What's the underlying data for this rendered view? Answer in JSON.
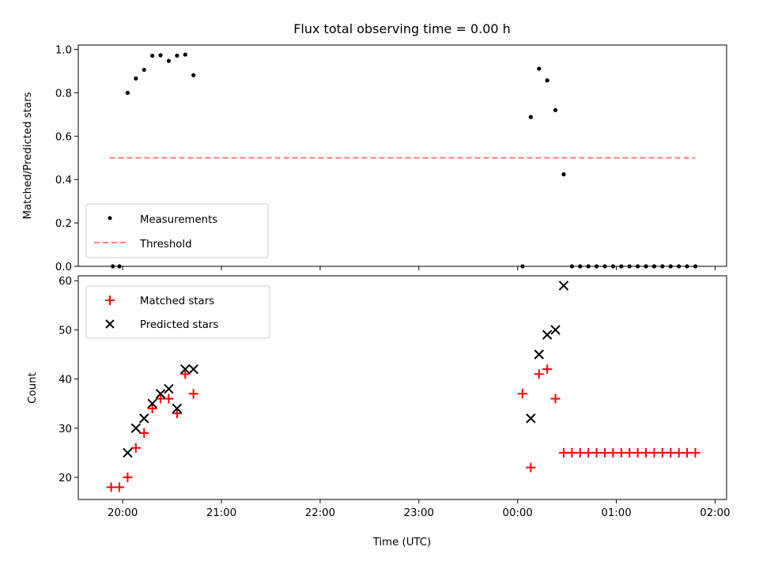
{
  "title": "Flux total observing time = 0.00 h",
  "colors": {
    "measurement": "#000000",
    "threshold": "#ff7f7f",
    "matched": "#ff0000",
    "predicted": "#000000"
  },
  "x_axis": {
    "xlabel": "Time (UTC)",
    "xlim": [
      "2024-01-01T19:33",
      "2024-01-02T02:07"
    ],
    "ticks": [
      {
        "t": "2024-01-01T20:00",
        "label": "20:00"
      },
      {
        "t": "2024-01-01T21:00",
        "label": "21:00"
      },
      {
        "t": "2024-01-01T22:00",
        "label": "22:00"
      },
      {
        "t": "2024-01-01T23:00",
        "label": "23:00"
      },
      {
        "t": "2024-01-02T00:00",
        "label": "00:00"
      },
      {
        "t": "2024-01-02T01:00",
        "label": "01:00"
      },
      {
        "t": "2024-01-02T02:00",
        "label": "02:00"
      }
    ]
  },
  "chart_data": [
    {
      "type": "scatter",
      "title": "Flux total observing time = 0.00 h",
      "ylabel": "Matched/Predicted stars",
      "ylim": [
        0,
        1.02
      ],
      "yticks": [
        0.0,
        0.2,
        0.4,
        0.6,
        0.8,
        1.0
      ],
      "ytick_labels": [
        "0.0",
        "0.2",
        "0.4",
        "0.6",
        "0.8",
        "1.0"
      ],
      "legend": {
        "placement": "lower-left",
        "entries": [
          "Measurements",
          "Threshold"
        ]
      },
      "series": [
        {
          "name": "Measurements",
          "marker": "dot",
          "points": [
            {
              "x": "2024-01-01T19:54",
              "y": 0.0
            },
            {
              "x": "2024-01-01T19:58",
              "y": 0.0
            },
            {
              "x": "2024-01-01T20:03",
              "y": 0.8
            },
            {
              "x": "2024-01-01T20:08",
              "y": 0.866
            },
            {
              "x": "2024-01-01T20:13",
              "y": 0.906
            },
            {
              "x": "2024-01-01T20:18",
              "y": 0.971
            },
            {
              "x": "2024-01-01T20:23",
              "y": 0.973
            },
            {
              "x": "2024-01-01T20:28",
              "y": 0.947
            },
            {
              "x": "2024-01-01T20:33",
              "y": 0.971
            },
            {
              "x": "2024-01-01T20:38",
              "y": 0.976
            },
            {
              "x": "2024-01-01T20:43",
              "y": 0.881
            },
            {
              "x": "2024-01-02T00:03",
              "y": 0.0
            },
            {
              "x": "2024-01-02T00:08",
              "y": 0.688
            },
            {
              "x": "2024-01-02T00:13",
              "y": 0.911
            },
            {
              "x": "2024-01-02T00:18",
              "y": 0.857
            },
            {
              "x": "2024-01-02T00:23",
              "y": 0.72
            },
            {
              "x": "2024-01-02T00:28",
              "y": 0.424
            },
            {
              "x": "2024-01-02T00:33",
              "y": 0.0
            },
            {
              "x": "2024-01-02T00:38",
              "y": 0.0
            },
            {
              "x": "2024-01-02T00:43",
              "y": 0.0
            },
            {
              "x": "2024-01-02T00:48",
              "y": 0.0
            },
            {
              "x": "2024-01-02T00:53",
              "y": 0.0
            },
            {
              "x": "2024-01-02T00:58",
              "y": 0.0
            },
            {
              "x": "2024-01-02T01:03",
              "y": 0.0
            },
            {
              "x": "2024-01-02T01:08",
              "y": 0.0
            },
            {
              "x": "2024-01-02T01:13",
              "y": 0.0
            },
            {
              "x": "2024-01-02T01:18",
              "y": 0.0
            },
            {
              "x": "2024-01-02T01:23",
              "y": 0.0
            },
            {
              "x": "2024-01-02T01:28",
              "y": 0.0
            },
            {
              "x": "2024-01-02T01:33",
              "y": 0.0
            },
            {
              "x": "2024-01-02T01:38",
              "y": 0.0
            },
            {
              "x": "2024-01-02T01:43",
              "y": 0.0
            },
            {
              "x": "2024-01-02T01:48",
              "y": 0.0
            }
          ]
        },
        {
          "name": "Threshold",
          "style": "dashed-line",
          "points": [
            {
              "x": "2024-01-01T19:52",
              "y": 0.5
            },
            {
              "x": "2024-01-02T01:48",
              "y": 0.5
            }
          ]
        }
      ]
    },
    {
      "type": "scatter",
      "ylabel": "Count",
      "ylim": [
        15.5,
        61
      ],
      "yticks": [
        20,
        30,
        40,
        50,
        60
      ],
      "ytick_labels": [
        "20",
        "30",
        "40",
        "50",
        "60"
      ],
      "legend": {
        "placement": "upper-left",
        "entries": [
          "Matched stars",
          "Predicted stars"
        ]
      },
      "series": [
        {
          "name": "Matched stars",
          "marker": "plus",
          "points": [
            {
              "x": "2024-01-01T19:53",
              "y": 18
            },
            {
              "x": "2024-01-01T19:58",
              "y": 18
            },
            {
              "x": "2024-01-01T20:03",
              "y": 20
            },
            {
              "x": "2024-01-01T20:08",
              "y": 26
            },
            {
              "x": "2024-01-01T20:13",
              "y": 29
            },
            {
              "x": "2024-01-01T20:18",
              "y": 34
            },
            {
              "x": "2024-01-01T20:23",
              "y": 36
            },
            {
              "x": "2024-01-01T20:28",
              "y": 36
            },
            {
              "x": "2024-01-01T20:33",
              "y": 33
            },
            {
              "x": "2024-01-01T20:38",
              "y": 41
            },
            {
              "x": "2024-01-01T20:43",
              "y": 37
            },
            {
              "x": "2024-01-02T00:03",
              "y": 37
            },
            {
              "x": "2024-01-02T00:08",
              "y": 22
            },
            {
              "x": "2024-01-02T00:13",
              "y": 41
            },
            {
              "x": "2024-01-02T00:18",
              "y": 42
            },
            {
              "x": "2024-01-02T00:23",
              "y": 36
            },
            {
              "x": "2024-01-02T00:28",
              "y": 25
            },
            {
              "x": "2024-01-02T00:33",
              "y": 25
            },
            {
              "x": "2024-01-02T00:38",
              "y": 25
            },
            {
              "x": "2024-01-02T00:43",
              "y": 25
            },
            {
              "x": "2024-01-02T00:48",
              "y": 25
            },
            {
              "x": "2024-01-02T00:53",
              "y": 25
            },
            {
              "x": "2024-01-02T00:58",
              "y": 25
            },
            {
              "x": "2024-01-02T01:03",
              "y": 25
            },
            {
              "x": "2024-01-02T01:08",
              "y": 25
            },
            {
              "x": "2024-01-02T01:13",
              "y": 25
            },
            {
              "x": "2024-01-02T01:18",
              "y": 25
            },
            {
              "x": "2024-01-02T01:23",
              "y": 25
            },
            {
              "x": "2024-01-02T01:28",
              "y": 25
            },
            {
              "x": "2024-01-02T01:33",
              "y": 25
            },
            {
              "x": "2024-01-02T01:38",
              "y": 25
            },
            {
              "x": "2024-01-02T01:43",
              "y": 25
            },
            {
              "x": "2024-01-02T01:48",
              "y": 25
            }
          ]
        },
        {
          "name": "Predicted stars",
          "marker": "x",
          "points": [
            {
              "x": "2024-01-01T20:03",
              "y": 25
            },
            {
              "x": "2024-01-01T20:08",
              "y": 30
            },
            {
              "x": "2024-01-01T20:13",
              "y": 32
            },
            {
              "x": "2024-01-01T20:18",
              "y": 35
            },
            {
              "x": "2024-01-01T20:23",
              "y": 37
            },
            {
              "x": "2024-01-01T20:28",
              "y": 38
            },
            {
              "x": "2024-01-01T20:33",
              "y": 34
            },
            {
              "x": "2024-01-01T20:38",
              "y": 42
            },
            {
              "x": "2024-01-01T20:43",
              "y": 42
            },
            {
              "x": "2024-01-02T00:08",
              "y": 32
            },
            {
              "x": "2024-01-02T00:13",
              "y": 45
            },
            {
              "x": "2024-01-02T00:18",
              "y": 49
            },
            {
              "x": "2024-01-02T00:23",
              "y": 50
            },
            {
              "x": "2024-01-02T00:28",
              "y": 59
            }
          ]
        }
      ]
    }
  ]
}
